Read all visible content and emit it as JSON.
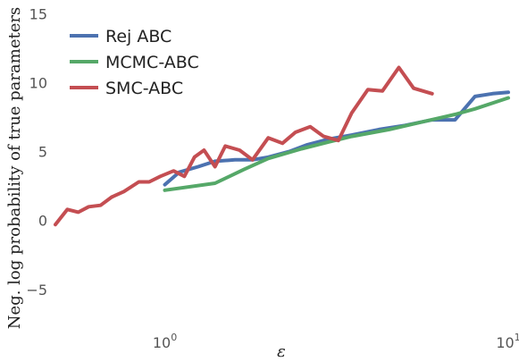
{
  "chart_data": {
    "type": "line",
    "title": "",
    "xlabel": "ε",
    "ylabel": "Neg. log probability of true parameters",
    "xscale": "log",
    "xlim": [
      0.48,
      10
    ],
    "ylim": [
      -8,
      16
    ],
    "grid": false,
    "background": "#ffffff",
    "legend_position": "top-left",
    "x_ticks": [
      {
        "value": 1,
        "base": "10",
        "exp": "0"
      },
      {
        "value": 10,
        "base": "10",
        "exp": "1"
      }
    ],
    "y_ticks": [
      {
        "value": -5,
        "label": "−5"
      },
      {
        "value": 0,
        "label": "0"
      },
      {
        "value": 5,
        "label": "5"
      },
      {
        "value": 10,
        "label": "10"
      },
      {
        "value": 15,
        "label": "15"
      }
    ],
    "series": [
      {
        "name": "Rej ABC",
        "color": "#4c72b0",
        "points": [
          [
            1.0,
            2.6
          ],
          [
            1.1,
            3.5
          ],
          [
            1.25,
            3.9
          ],
          [
            1.4,
            4.3
          ],
          [
            1.6,
            4.4
          ],
          [
            1.8,
            4.4
          ],
          [
            2.0,
            4.6
          ],
          [
            2.3,
            5.0
          ],
          [
            2.6,
            5.5
          ],
          [
            3.0,
            5.9
          ],
          [
            3.5,
            6.2
          ],
          [
            4.2,
            6.6
          ],
          [
            5.0,
            6.9
          ],
          [
            6.0,
            7.3
          ],
          [
            7.0,
            7.3
          ],
          [
            8.0,
            9.0
          ],
          [
            9.0,
            9.2
          ],
          [
            10.0,
            9.3
          ]
        ]
      },
      {
        "name": "MCMC-ABC",
        "color": "#55a868",
        "points": [
          [
            1.0,
            2.2
          ],
          [
            1.4,
            2.7
          ],
          [
            1.7,
            3.7
          ],
          [
            2.0,
            4.5
          ],
          [
            2.5,
            5.2
          ],
          [
            3.0,
            5.7
          ],
          [
            3.5,
            6.1
          ],
          [
            4.5,
            6.6
          ],
          [
            5.5,
            7.1
          ],
          [
            7.0,
            7.7
          ],
          [
            8.0,
            8.1
          ],
          [
            10.0,
            8.9
          ]
        ]
      },
      {
        "name": "SMC-ABC",
        "color": "#c44e52",
        "points": [
          [
            0.48,
            -0.3
          ],
          [
            0.52,
            0.8
          ],
          [
            0.56,
            0.6
          ],
          [
            0.6,
            1.0
          ],
          [
            0.65,
            1.1
          ],
          [
            0.7,
            1.7
          ],
          [
            0.76,
            2.1
          ],
          [
            0.84,
            2.8
          ],
          [
            0.9,
            2.8
          ],
          [
            0.97,
            3.2
          ],
          [
            1.06,
            3.6
          ],
          [
            1.14,
            3.2
          ],
          [
            1.22,
            4.6
          ],
          [
            1.3,
            5.1
          ],
          [
            1.4,
            3.9
          ],
          [
            1.5,
            5.4
          ],
          [
            1.65,
            5.1
          ],
          [
            1.8,
            4.4
          ],
          [
            2.0,
            6.0
          ],
          [
            2.2,
            5.6
          ],
          [
            2.4,
            6.4
          ],
          [
            2.65,
            6.8
          ],
          [
            2.9,
            6.1
          ],
          [
            3.2,
            5.8
          ],
          [
            3.5,
            7.8
          ],
          [
            3.9,
            9.5
          ],
          [
            4.3,
            9.4
          ],
          [
            4.8,
            11.1
          ],
          [
            5.3,
            9.6
          ],
          [
            6.0,
            9.2
          ]
        ]
      }
    ]
  }
}
